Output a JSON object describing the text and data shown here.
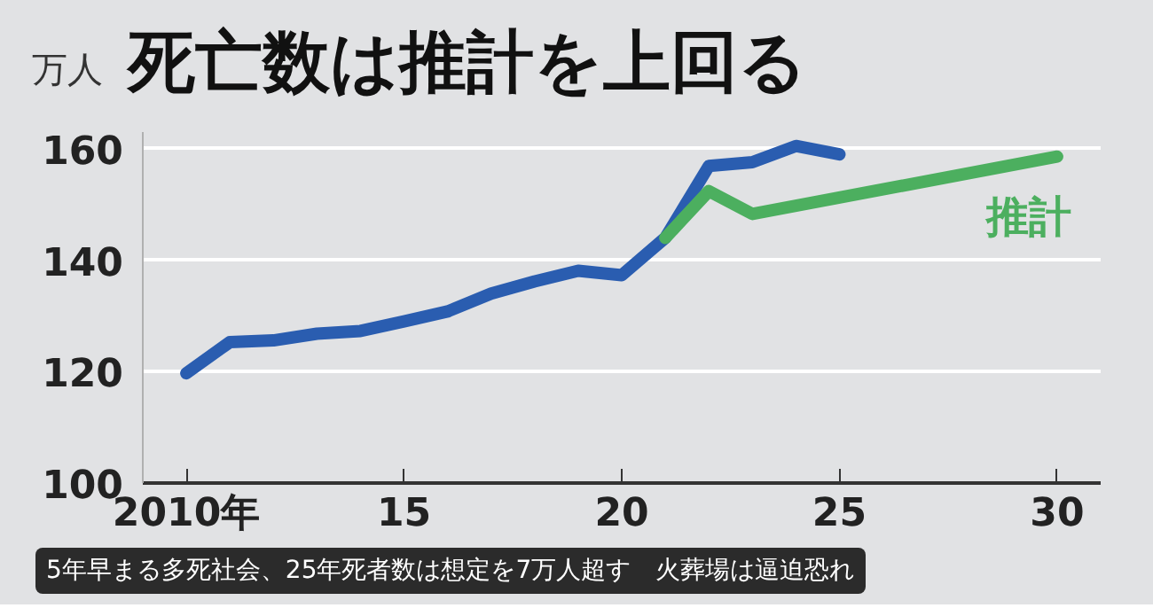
{
  "chart_data": {
    "type": "line",
    "title": "死亡数は推計を上回る",
    "ylabel": "万人",
    "xlim": [
      2009,
      2031
    ],
    "ylim": [
      100,
      163
    ],
    "xticks": [
      {
        "value": 2010,
        "label": "2010年"
      },
      {
        "value": 2015,
        "label": "15"
      },
      {
        "value": 2020,
        "label": "20"
      },
      {
        "value": 2025,
        "label": "25"
      },
      {
        "value": 2030,
        "label": "30"
      }
    ],
    "yticks": [
      100,
      120,
      140,
      160
    ],
    "grid": "y",
    "marker": "none",
    "line_style": "solid",
    "series": [
      {
        "color": "#2a5db0",
        "x": [
          2010,
          2011,
          2012,
          2013,
          2014,
          2015,
          2016,
          2017,
          2018,
          2019,
          2020,
          2021,
          2022,
          2023,
          2024,
          2025
        ],
        "values": [
          119.7,
          125.3,
          125.6,
          126.8,
          127.3,
          129.0,
          130.8,
          134.0,
          136.2,
          138.1,
          137.3,
          144.0,
          156.9,
          157.6,
          160.5,
          159.0
        ]
      },
      {
        "name": "推計",
        "color": "#4caf5f",
        "x": [
          2021,
          2022,
          2023,
          2030
        ],
        "values": [
          144.0,
          152.4,
          148.3,
          158.6
        ]
      }
    ],
    "annotations": [
      "5年早まる多死社会、25年死者数は想定を7万人超す　火葬場は逼迫恐れ"
    ]
  }
}
